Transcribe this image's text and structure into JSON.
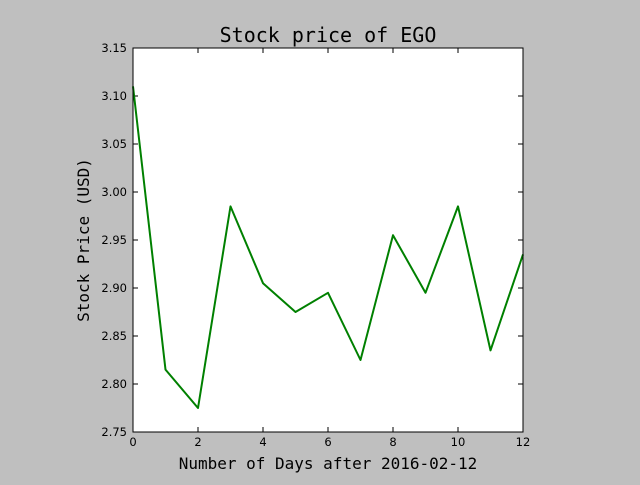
{
  "chart_data": {
    "type": "line",
    "title": "Stock price of EGO",
    "xlabel": "Number of Days after 2016-02-12",
    "ylabel": "Stock Price (USD)",
    "xlim": [
      0,
      12
    ],
    "ylim": [
      2.75,
      3.15
    ],
    "x_ticks": [
      "0",
      "2",
      "4",
      "6",
      "8",
      "10",
      "12"
    ],
    "y_ticks": [
      "2.75",
      "2.80",
      "2.85",
      "2.90",
      "2.95",
      "3.00",
      "3.05",
      "3.10",
      "3.15"
    ],
    "grid": false,
    "series": [
      {
        "color": "#008000",
        "x": [
          0,
          1,
          2,
          3,
          4,
          5,
          6,
          7,
          8,
          9,
          10,
          11,
          12
        ],
        "y": [
          3.11,
          2.815,
          2.775,
          2.985,
          2.905,
          2.875,
          2.895,
          2.825,
          2.955,
          2.895,
          2.985,
          2.835,
          2.935
        ]
      }
    ]
  }
}
